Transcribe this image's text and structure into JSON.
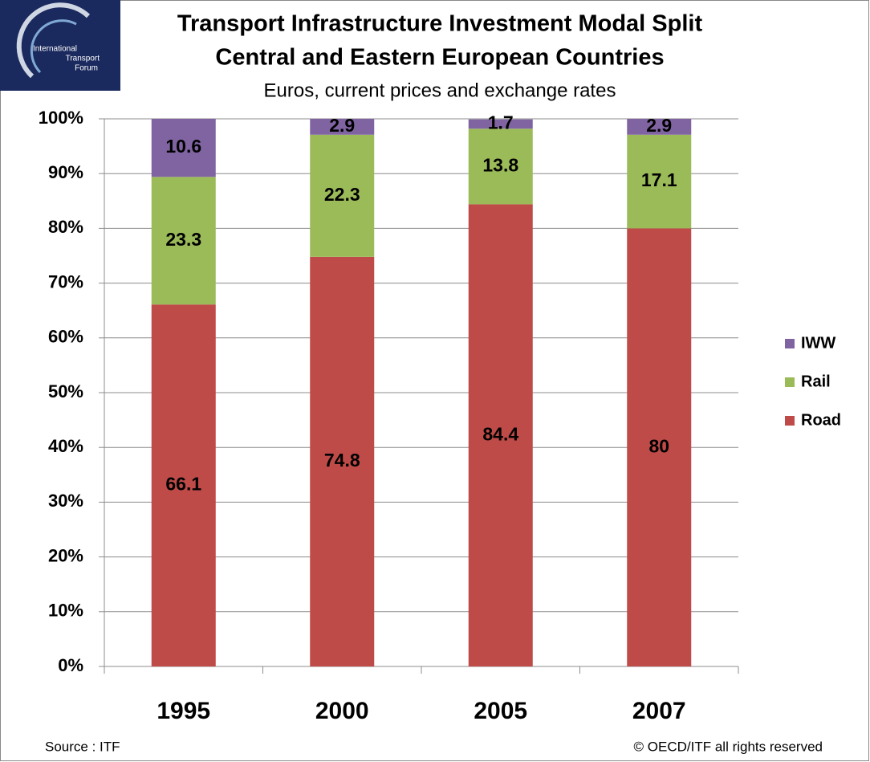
{
  "chart_data": {
    "type": "stacked_bar",
    "title": "Transport Infrastructure Investment Modal Split",
    "title_line2": "Central and Eastern European Countries",
    "subtitle": "Euros, current prices and exchange rates",
    "categories": [
      "1995",
      "2000",
      "2005",
      "2007"
    ],
    "series": [
      {
        "name": "Road",
        "color": "#be4b48",
        "values": [
          66.1,
          74.8,
          84.4,
          80
        ]
      },
      {
        "name": "Rail",
        "color": "#9bbb59",
        "values": [
          23.3,
          22.3,
          13.8,
          17.1
        ]
      },
      {
        "name": "IWW",
        "color": "#8064a2",
        "values": [
          10.6,
          2.9,
          1.7,
          2.9
        ]
      }
    ],
    "ylim": [
      0,
      100
    ],
    "yticks": [
      {
        "value": 0,
        "label": "0%"
      },
      {
        "value": 10,
        "label": "10%"
      },
      {
        "value": 20,
        "label": "20%"
      },
      {
        "value": 30,
        "label": "30%"
      },
      {
        "value": 40,
        "label": "40%"
      },
      {
        "value": 50,
        "label": "50%"
      },
      {
        "value": 60,
        "label": "60%"
      },
      {
        "value": 70,
        "label": "70%"
      },
      {
        "value": 80,
        "label": "80%"
      },
      {
        "value": 90,
        "label": "90%"
      },
      {
        "value": 100,
        "label": "100%"
      }
    ],
    "grid": true,
    "legend": "right"
  },
  "logo": [
    "International",
    "Transport",
    "Forum"
  ],
  "footer": {
    "source": "Source : ITF",
    "copyright": "© OECD/ITF all rights reserved"
  }
}
